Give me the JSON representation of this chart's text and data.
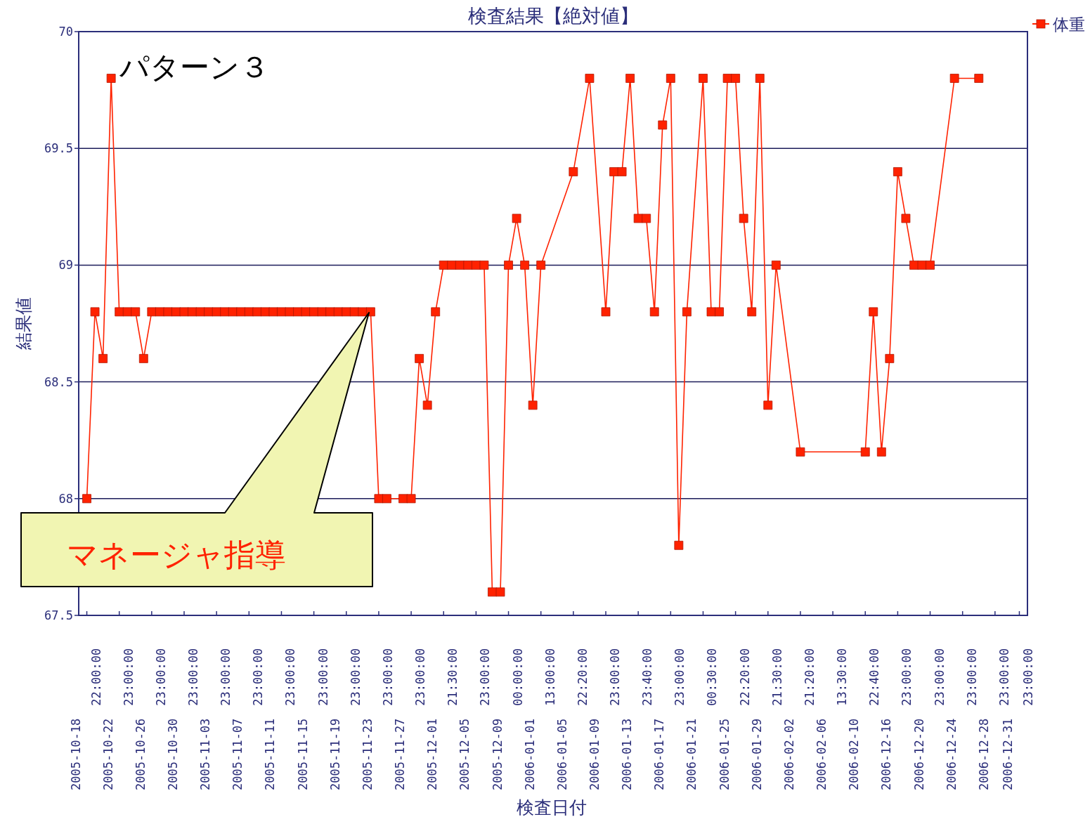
{
  "chart_data": {
    "type": "line",
    "title": "検査結果【絶対値】",
    "xlabel": "検査日付",
    "ylabel": "結果値",
    "annotations": [
      "パターン３",
      "マネージャ指導"
    ],
    "categories": [
      "2005-10-18 22:00:00",
      null,
      null,
      null,
      "2005-10-22 23:00:00",
      null,
      null,
      null,
      "2005-10-26 23:00:00",
      null,
      null,
      null,
      "2005-10-30 23:00:00",
      null,
      null,
      null,
      "2005-11-03 23:00:00",
      null,
      null,
      null,
      "2005-11-07 23:00:00",
      null,
      null,
      null,
      "2005-11-11 23:00:00",
      null,
      null,
      null,
      "2005-11-15 23:00:00",
      null,
      null,
      null,
      "2005-11-19 23:00:00",
      null,
      null,
      null,
      "2005-11-23 23:00:00",
      null,
      null,
      null,
      "2005-11-27 23:00:00",
      null,
      null,
      null,
      "2005-12-01 21:30:00",
      null,
      null,
      null,
      "2005-12-05 23:00:00",
      null,
      null,
      null,
      "2005-12-09 00:00:00",
      null,
      null,
      null,
      "2006-01-01 13:00:00",
      null,
      null,
      null,
      "2006-01-05 22:20:00",
      null,
      null,
      null,
      "2006-01-09 23:00:00",
      null,
      null,
      null,
      "2006-01-13 23:40:00",
      null,
      null,
      null,
      "2006-01-17 23:00:00",
      null,
      null,
      null,
      "2006-01-21 00:30:00",
      null,
      null,
      null,
      "2006-01-25 22:20:00",
      null,
      null,
      null,
      "2006-01-29 21:30:00",
      null,
      null,
      null,
      "2006-02-02 21:20:00",
      null,
      null,
      null,
      "2006-02-06 13:30:00",
      null,
      null,
      null,
      "2006-02-10 22:40:00",
      null,
      null,
      null,
      "2006-12-16 23:00:00",
      null,
      null,
      null,
      "2006-12-20 23:00:00",
      null,
      null,
      null,
      "2006-12-24 23:00:00",
      null,
      null,
      null,
      "2006-12-28 23:00:00",
      null,
      null,
      "2006-12-31 23:00:00"
    ],
    "series": [
      {
        "name": "体重",
        "color": "#ff2200",
        "values": [
          68.0,
          68.8,
          68.6,
          69.8,
          68.8,
          68.8,
          68.8,
          68.6,
          68.8,
          68.8,
          68.8,
          68.8,
          68.8,
          68.8,
          68.8,
          68.8,
          68.8,
          68.8,
          68.8,
          68.8,
          68.8,
          68.8,
          68.8,
          68.8,
          68.8,
          68.8,
          68.8,
          68.8,
          68.8,
          68.8,
          68.8,
          68.8,
          68.8,
          68.8,
          68.8,
          68.8,
          68.0,
          68.0,
          null,
          68.0,
          68.0,
          68.6,
          68.4,
          68.8,
          69.0,
          69.0,
          69.0,
          69.0,
          69.0,
          69.0,
          67.6,
          67.6,
          69.0,
          69.2,
          69.0,
          68.4,
          69.0,
          null,
          null,
          null,
          69.4,
          null,
          69.8,
          null,
          68.8,
          69.4,
          69.4,
          69.8,
          69.2,
          69.2,
          68.8,
          69.6,
          69.8,
          67.8,
          68.8,
          null,
          69.8,
          68.8,
          68.8,
          69.8,
          69.8,
          69.2,
          68.8,
          69.8,
          68.4,
          69.0,
          null,
          null,
          68.2,
          null,
          null,
          null,
          null,
          null,
          null,
          null,
          68.2,
          68.8,
          68.2,
          68.6,
          69.4,
          69.2,
          69.0,
          69.0,
          69.0,
          null,
          null,
          69.8,
          null,
          null,
          69.8,
          null,
          null,
          null,
          null,
          null
        ]
      }
    ],
    "ylim": [
      67.5,
      70
    ],
    "yticks": [
      67.5,
      68,
      68.5,
      69,
      69.5,
      70
    ],
    "grid": "y",
    "legend": "top right",
    "marker": "square",
    "line_style": "solid"
  }
}
